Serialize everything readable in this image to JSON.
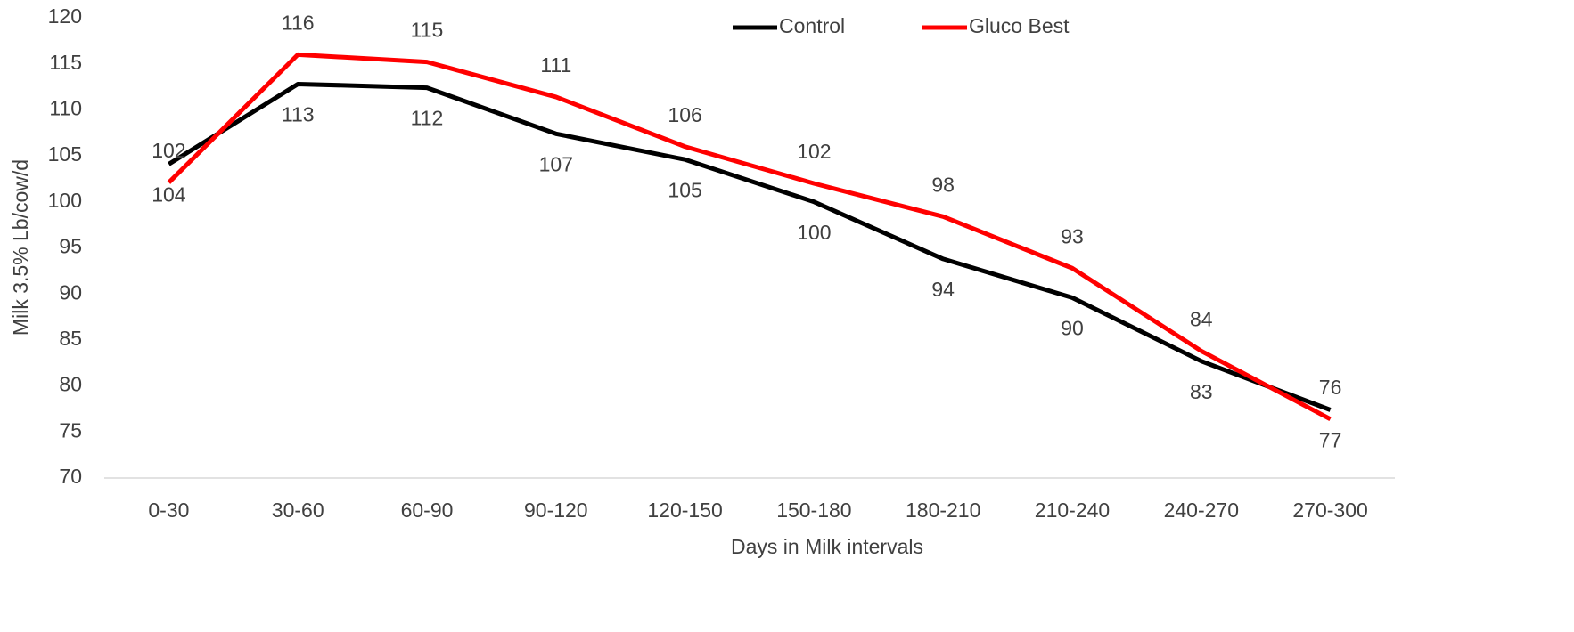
{
  "chart_data": {
    "type": "line",
    "x_label": "Days in Milk intervals",
    "y_label": "Milk 3.5% Lb/cow/d",
    "categories": [
      "0-30",
      "30-60",
      "60-90",
      "90-120",
      "120-150",
      "150-180",
      "180-210",
      "210-240",
      "240-270",
      "270-300"
    ],
    "series": [
      {
        "name": "Control",
        "color": "#000000",
        "label_position": "below",
        "values": [
          104.1,
          112.8,
          112.4,
          107.4,
          104.6,
          100.0,
          93.8,
          89.6,
          82.7,
          77.4
        ],
        "value_labels": [
          "104",
          "113",
          "112",
          "107",
          "105",
          "100",
          "94",
          "90",
          "83",
          "77"
        ]
      },
      {
        "name": "Gluco Best",
        "color": "#ff0000",
        "label_position": "above",
        "values": [
          102.1,
          116.0,
          115.2,
          111.4,
          106.0,
          102.0,
          98.4,
          92.8,
          83.8,
          76.4
        ],
        "value_labels": [
          "102",
          "116",
          "115",
          "111",
          "106",
          "102",
          "98",
          "93",
          "84",
          "76"
        ]
      }
    ],
    "ylim": [
      70,
      120
    ],
    "yticks": [
      70,
      75,
      80,
      85,
      90,
      95,
      100,
      105,
      110,
      115,
      120
    ],
    "grid": false,
    "legend": "top"
  }
}
